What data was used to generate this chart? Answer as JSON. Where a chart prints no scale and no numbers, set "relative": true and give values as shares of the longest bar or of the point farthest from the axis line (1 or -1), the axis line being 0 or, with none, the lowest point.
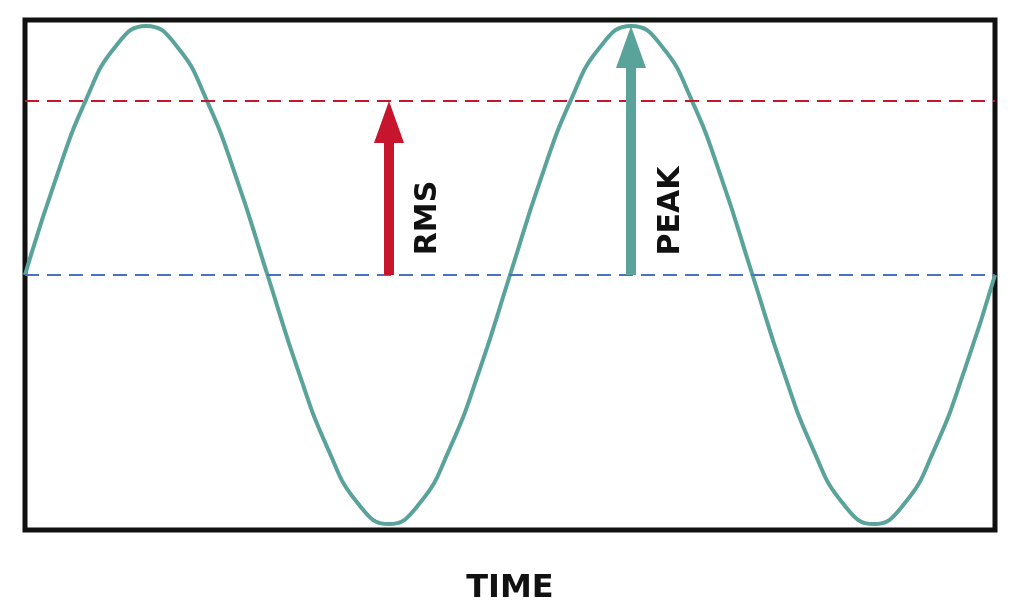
{
  "chart_data": {
    "type": "line",
    "relative": true,
    "xlabel": "TIME",
    "categories": [
      null,
      null,
      null,
      null,
      null,
      null,
      null,
      null,
      null,
      null,
      null,
      null,
      null,
      null,
      null,
      null,
      null,
      null,
      null,
      null,
      null,
      null,
      null,
      null,
      null,
      null,
      null,
      null,
      null,
      null,
      null,
      null,
      null
    ],
    "series": [
      {
        "color": "#5aa39b",
        "values": [
          0.5,
          0.69,
          0.85,
          0.96,
          1,
          0.96,
          0.85,
          0.69,
          0.5,
          0.31,
          0.15,
          0.04,
          0,
          0.04,
          0.15,
          0.31,
          0.5,
          0.69,
          0.85,
          0.96,
          1,
          0.96,
          0.85,
          0.69,
          0.5,
          0.31,
          0.15,
          0.04,
          0,
          0.04,
          0.15,
          0.31,
          0.5
        ]
      }
    ],
    "ref_lines": [
      {
        "axis": "y",
        "value": 0.5,
        "color": "#4a72c0",
        "line_style": "dashed"
      },
      {
        "axis": "y",
        "value": 0.85,
        "color": "#c8152e",
        "line_style": "dashed"
      }
    ],
    "annotations": [
      "RMS",
      "PEAK"
    ],
    "marker": "none"
  }
}
